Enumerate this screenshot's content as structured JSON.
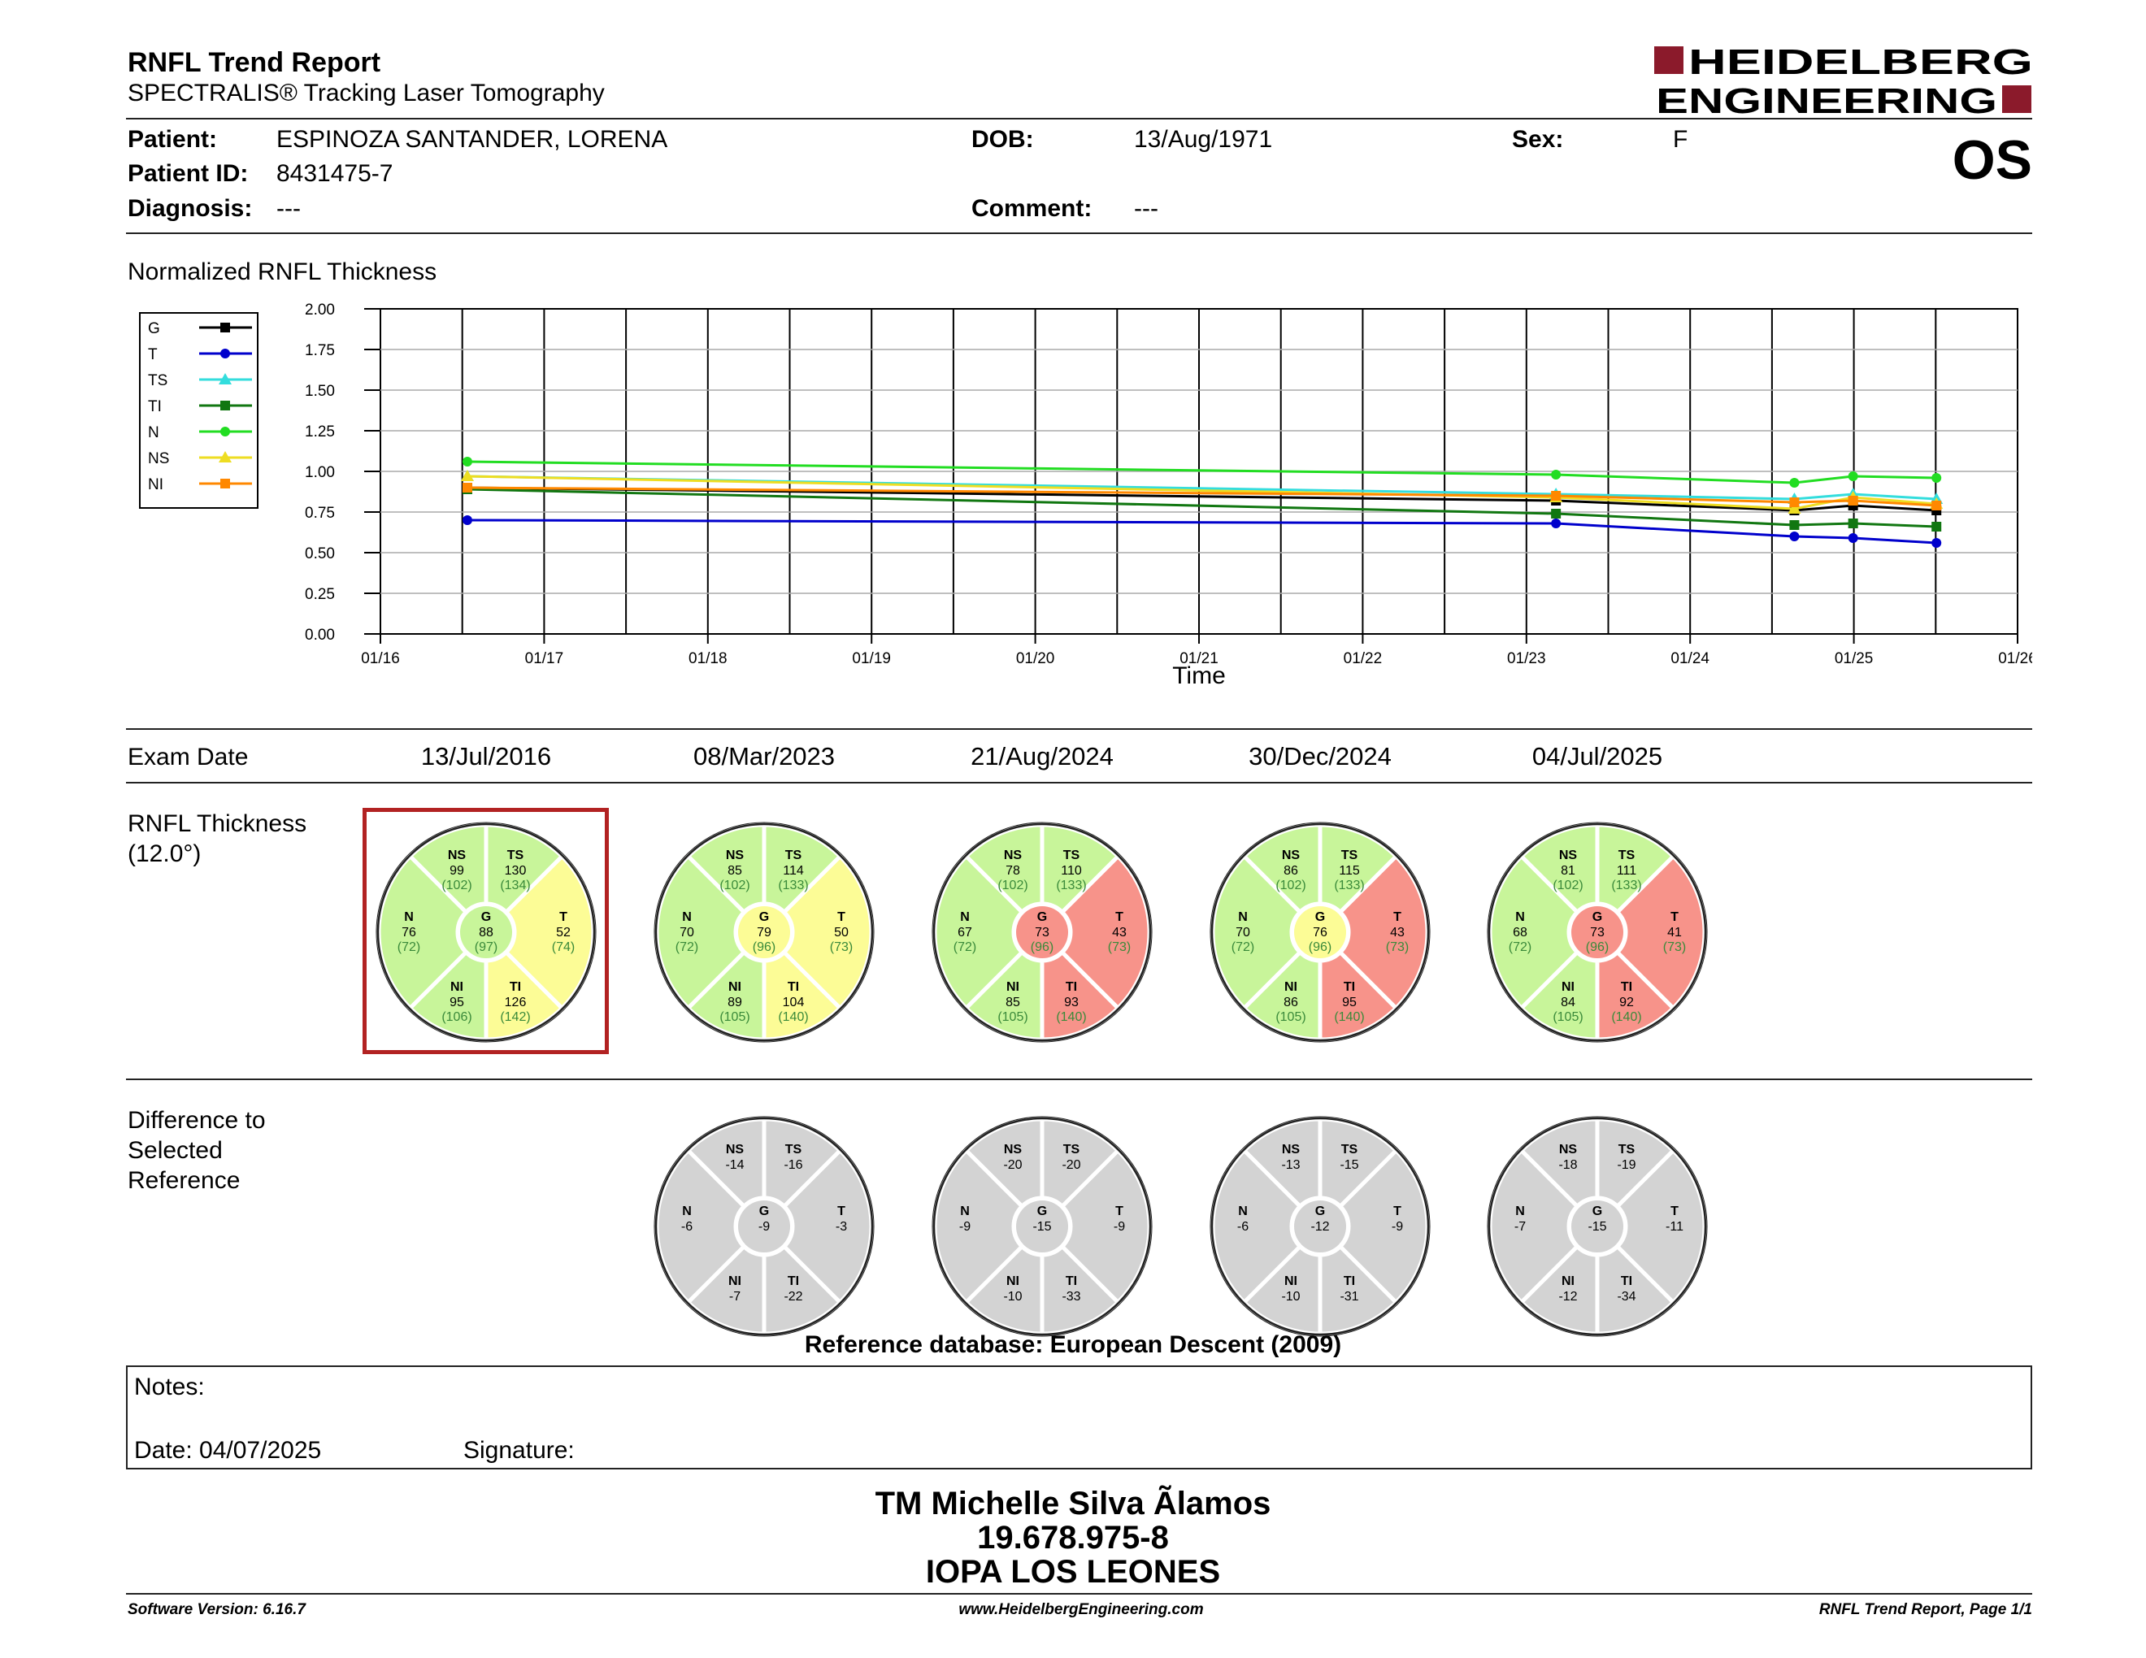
{
  "header": {
    "title": "RNFL Trend Report",
    "subtitle": "SPECTRALIS® Tracking Laser Tomography",
    "logo_line1": "HEIDELBERG",
    "logo_line2": "ENGINEERING",
    "brand_color": "#8b1a2b",
    "eye": "OS"
  },
  "patient": {
    "patient_label": "Patient:",
    "patient_value": "ESPINOZA SANTANDER, LORENA",
    "dob_label": "DOB:",
    "dob_value": "13/Aug/1971",
    "sex_label": "Sex:",
    "sex_value": "F",
    "id_label": "Patient ID:",
    "id_value": "8431475-7",
    "diagnosis_label": "Diagnosis:",
    "diagnosis_value": "---",
    "comment_label": "Comment:",
    "comment_value": "---"
  },
  "chart_data": {
    "type": "line",
    "title": "Normalized RNFL Thickness",
    "xlabel": "Time",
    "ylabel": "",
    "ylim": [
      0,
      2.0
    ],
    "yticks": [
      "0.00",
      "0.25",
      "0.50",
      "0.75",
      "1.00",
      "1.25",
      "1.50",
      "1.75",
      "2.00"
    ],
    "xticks": [
      "01/16",
      "01/17",
      "01/18",
      "01/19",
      "01/20",
      "01/21",
      "01/22",
      "01/23",
      "01/24",
      "01/25",
      "01/26"
    ],
    "x_dates": [
      "2016-07-13",
      "2023-03-08",
      "2024-08-21",
      "2024-12-30",
      "2025-07-04"
    ],
    "grid": true,
    "legend_position": "left",
    "series": [
      {
        "name": "G",
        "color": "#000000",
        "marker": "square",
        "values": [
          0.9,
          0.82,
          0.76,
          0.79,
          0.76
        ]
      },
      {
        "name": "T",
        "color": "#0000cc",
        "marker": "circle",
        "values": [
          0.7,
          0.68,
          0.6,
          0.59,
          0.56
        ]
      },
      {
        "name": "TS",
        "color": "#33dddd",
        "marker": "triangle",
        "values": [
          0.97,
          0.86,
          0.83,
          0.86,
          0.83
        ]
      },
      {
        "name": "TI",
        "color": "#117711",
        "marker": "square",
        "values": [
          0.89,
          0.74,
          0.67,
          0.68,
          0.66
        ]
      },
      {
        "name": "N",
        "color": "#22dd22",
        "marker": "circle",
        "values": [
          1.06,
          0.98,
          0.93,
          0.97,
          0.96
        ]
      },
      {
        "name": "NS",
        "color": "#eedd22",
        "marker": "triangle",
        "values": [
          0.97,
          0.84,
          0.77,
          0.84,
          0.8
        ]
      },
      {
        "name": "NI",
        "color": "#ff8800",
        "marker": "square",
        "values": [
          0.9,
          0.85,
          0.81,
          0.82,
          0.79
        ]
      }
    ]
  },
  "exams": {
    "label": "Exam Date",
    "thickness_label_1": "RNFL Thickness",
    "thickness_label_2": "(12.0°)",
    "difference_label_1": "Difference to",
    "difference_label_2": "Selected",
    "difference_label_3": "Reference",
    "reference_db": "Reference database: European Descent (2009)",
    "colors": {
      "green": "#c8f59a",
      "yellow": "#fcfc96",
      "red": "#f7938a",
      "gray": "#d3d3d3",
      "ref_text": "#3a8a3a"
    },
    "dates": [
      "13/Jul/2016",
      "08/Mar/2023",
      "21/Aug/2024",
      "30/Dec/2024",
      "04/Jul/2025"
    ],
    "thickness": [
      {
        "NS": {
          "v": "99",
          "r": "(102)",
          "c": "green"
        },
        "TS": {
          "v": "130",
          "r": "(134)",
          "c": "green"
        },
        "N": {
          "v": "76",
          "r": "(72)",
          "c": "green"
        },
        "G": {
          "v": "88",
          "r": "(97)",
          "c": "green"
        },
        "T": {
          "v": "52",
          "r": "(74)",
          "c": "yellow"
        },
        "NI": {
          "v": "95",
          "r": "(106)",
          "c": "green"
        },
        "TI": {
          "v": "126",
          "r": "(142)",
          "c": "yellow"
        }
      },
      {
        "NS": {
          "v": "85",
          "r": "(102)",
          "c": "green"
        },
        "TS": {
          "v": "114",
          "r": "(133)",
          "c": "green"
        },
        "N": {
          "v": "70",
          "r": "(72)",
          "c": "green"
        },
        "G": {
          "v": "79",
          "r": "(96)",
          "c": "yellow"
        },
        "T": {
          "v": "50",
          "r": "(73)",
          "c": "yellow"
        },
        "NI": {
          "v": "89",
          "r": "(105)",
          "c": "green"
        },
        "TI": {
          "v": "104",
          "r": "(140)",
          "c": "yellow"
        }
      },
      {
        "NS": {
          "v": "78",
          "r": "(102)",
          "c": "green"
        },
        "TS": {
          "v": "110",
          "r": "(133)",
          "c": "green"
        },
        "N": {
          "v": "67",
          "r": "(72)",
          "c": "green"
        },
        "G": {
          "v": "73",
          "r": "(96)",
          "c": "red"
        },
        "T": {
          "v": "43",
          "r": "(73)",
          "c": "red"
        },
        "NI": {
          "v": "85",
          "r": "(105)",
          "c": "green"
        },
        "TI": {
          "v": "93",
          "r": "(140)",
          "c": "red"
        }
      },
      {
        "NS": {
          "v": "86",
          "r": "(102)",
          "c": "green"
        },
        "TS": {
          "v": "115",
          "r": "(133)",
          "c": "green"
        },
        "N": {
          "v": "70",
          "r": "(72)",
          "c": "green"
        },
        "G": {
          "v": "76",
          "r": "(96)",
          "c": "yellow"
        },
        "T": {
          "v": "43",
          "r": "(73)",
          "c": "red"
        },
        "NI": {
          "v": "86",
          "r": "(105)",
          "c": "green"
        },
        "TI": {
          "v": "95",
          "r": "(140)",
          "c": "red"
        }
      },
      {
        "NS": {
          "v": "81",
          "r": "(102)",
          "c": "green"
        },
        "TS": {
          "v": "111",
          "r": "(133)",
          "c": "green"
        },
        "N": {
          "v": "68",
          "r": "(72)",
          "c": "green"
        },
        "G": {
          "v": "73",
          "r": "(96)",
          "c": "red"
        },
        "T": {
          "v": "41",
          "r": "(73)",
          "c": "red"
        },
        "NI": {
          "v": "84",
          "r": "(105)",
          "c": "green"
        },
        "TI": {
          "v": "92",
          "r": "(140)",
          "c": "red"
        }
      }
    ],
    "differences": [
      null,
      {
        "NS": "-14",
        "TS": "-16",
        "N": "-6",
        "G": "-9",
        "T": "-3",
        "NI": "-7",
        "TI": "-22"
      },
      {
        "NS": "-20",
        "TS": "-20",
        "N": "-9",
        "G": "-15",
        "T": "-9",
        "NI": "-10",
        "TI": "-33"
      },
      {
        "NS": "-13",
        "TS": "-15",
        "N": "-6",
        "G": "-12",
        "T": "-9",
        "NI": "-10",
        "TI": "-31"
      },
      {
        "NS": "-18",
        "TS": "-19",
        "N": "-7",
        "G": "-15",
        "T": "-11",
        "NI": "-12",
        "TI": "-34"
      }
    ]
  },
  "notes": {
    "notes_label": "Notes:",
    "date_label": "Date: 04/07/2025",
    "signature_label": "Signature:"
  },
  "signature": {
    "name": "TM Michelle Silva Ãlamos",
    "id": "19.678.975-8",
    "institution": "IOPA LOS LEONES"
  },
  "footer": {
    "software": "Software Version: 6.16.7",
    "website": "www.HeidelbergEngineering.com",
    "page": "RNFL Trend Report, Page 1/1"
  }
}
